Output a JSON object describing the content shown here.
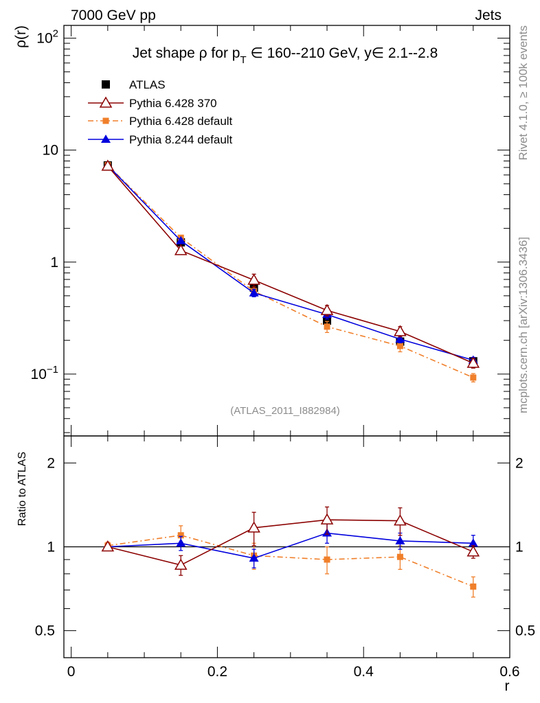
{
  "header": {
    "left": "7000 GeV pp",
    "right": "Jets",
    "side_top": "Rivet 4.1.0, ≥ 100k events",
    "side_bottom": "mcplots.cern.ch [arXiv:1306.3436]"
  },
  "chart_data": {
    "type": "line",
    "title_parts": {
      "prefix": "Jet shape ρ for p",
      "subscript": "T",
      "suffix": " ∈ 160--210 GeV, y∈ 2.1--2.8"
    },
    "analysis_label": "(ATLAS_2011_I882984)",
    "xlabel": "r",
    "xlim": [
      -0.01,
      0.6
    ],
    "x_ticks": [
      {
        "value": 0,
        "label": "0"
      },
      {
        "value": 0.2,
        "label": "0.2"
      },
      {
        "value": 0.4,
        "label": "0.4"
      },
      {
        "value": 0.6,
        "label": "0.6"
      }
    ],
    "main": {
      "ylabel": "ρ(r)",
      "yscale": "log",
      "ylim": [
        0.028,
        130
      ],
      "y_ticks": [
        {
          "value": 100,
          "base": "10",
          "exp": "2"
        },
        {
          "value": 10,
          "base": "10",
          "exp": ""
        },
        {
          "value": 1,
          "base": "1",
          "exp": ""
        },
        {
          "value": 0.1,
          "base": "10",
          "exp": "−1"
        }
      ],
      "x": [
        0.05,
        0.15,
        0.25,
        0.35,
        0.45,
        0.55
      ],
      "series": [
        {
          "name": "ATLAS",
          "color": "#000000",
          "marker": "square",
          "line": "none",
          "values": [
            7.3,
            1.5,
            0.59,
            0.3,
            0.195,
            0.13
          ],
          "err": [
            0.3,
            0.08,
            0.04,
            0.02,
            0.012,
            0.008
          ]
        },
        {
          "name": "Pythia 6.428 370",
          "color": "#8b0000",
          "marker": "open-triangle",
          "line": "solid",
          "values": [
            7.2,
            1.27,
            0.69,
            0.37,
            0.24,
            0.125
          ],
          "err": [
            0.15,
            0.08,
            0.09,
            0.04,
            0.025,
            0.012
          ]
        },
        {
          "name": "Pythia 6.428 default",
          "color": "#f07f2a",
          "marker": "small-square",
          "line": "dashdot",
          "values": [
            7.35,
            1.65,
            0.55,
            0.265,
            0.178,
            0.093
          ],
          "err": [
            0.12,
            0.08,
            0.05,
            0.03,
            0.02,
            0.008
          ]
        },
        {
          "name": "Pythia 8.244 default",
          "color": "#0000dd",
          "marker": "filled-triangle",
          "line": "solid",
          "values": [
            7.3,
            1.55,
            0.53,
            0.34,
            0.205,
            0.133
          ],
          "err": [
            0.12,
            0.06,
            0.04,
            0.03,
            0.015,
            0.008
          ]
        }
      ]
    },
    "ratio": {
      "ylabel": "Ratio to ATLAS",
      "yscale": "log",
      "ylim": [
        0.4,
        2.5
      ],
      "y_ticks": [
        {
          "value": 2,
          "label": "2"
        },
        {
          "value": 1,
          "label": "1"
        },
        {
          "value": 0.5,
          "label": "0.5"
        }
      ],
      "x": [
        0.05,
        0.15,
        0.25,
        0.35,
        0.45,
        0.55
      ],
      "series": [
        {
          "name": "Pythia 6.428 370",
          "values": [
            1.0,
            0.86,
            1.17,
            1.25,
            1.24,
            0.96
          ],
          "err": [
            0.02,
            0.07,
            0.16,
            0.14,
            0.14,
            0.05
          ]
        },
        {
          "name": "Pythia 6.428 default",
          "values": [
            1.01,
            1.1,
            0.93,
            0.9,
            0.92,
            0.72
          ],
          "err": [
            0.03,
            0.09,
            0.1,
            0.1,
            0.09,
            0.06
          ]
        },
        {
          "name": "Pythia 8.244 default",
          "values": [
            1.0,
            1.03,
            0.91,
            1.12,
            1.05,
            1.03
          ],
          "err": [
            0.02,
            0.06,
            0.07,
            0.09,
            0.07,
            0.07
          ]
        }
      ]
    }
  }
}
